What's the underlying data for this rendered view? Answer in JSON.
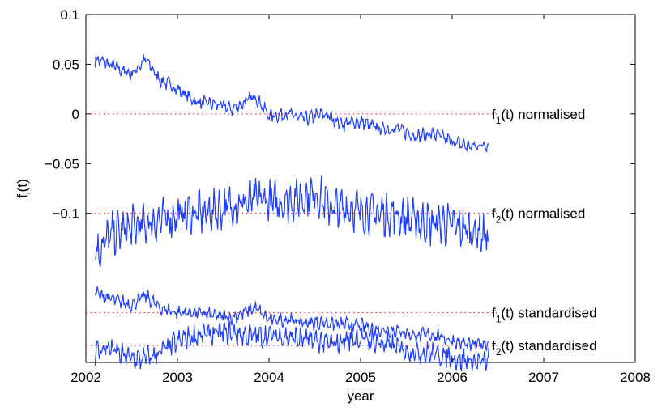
{
  "chart_data": {
    "type": "line",
    "xlabel": "year",
    "ylabel": "f",
    "ylabel_sub": "i",
    "ylabel_suffix": "(t)",
    "xlim": [
      2002,
      2008
    ],
    "ylim": [
      -0.25,
      0.1
    ],
    "xticks": [
      2002,
      2003,
      2004,
      2005,
      2006,
      2007,
      2008
    ],
    "yticks": [
      0.1,
      0.05,
      0,
      -0.05,
      -0.1
    ],
    "ytick_labels": [
      "0.1",
      "0.05",
      "0",
      "−0.05",
      "−0.1"
    ],
    "line_color": "#1f3fff",
    "baseline_color": "#ff2020",
    "series": [
      {
        "name": "f1(t) normalised",
        "label_main": "f",
        "label_sub": "1",
        "label_rest": "(t) normalised",
        "baseline": 0,
        "x": [
          2002.1,
          2002.3,
          2002.5,
          2002.65,
          2002.8,
          2003.0,
          2003.2,
          2003.4,
          2003.6,
          2003.85,
          2004.0,
          2004.2,
          2004.4,
          2004.6,
          2004.8,
          2005.0,
          2005.2,
          2005.4,
          2005.6,
          2005.8,
          2006.0,
          2006.2,
          2006.4
        ],
        "values": [
          0.055,
          0.048,
          0.04,
          0.055,
          0.035,
          0.025,
          0.012,
          0.01,
          0.005,
          0.018,
          -0.002,
          0.0,
          -0.005,
          0.0,
          -0.01,
          -0.008,
          -0.015,
          -0.015,
          -0.022,
          -0.02,
          -0.028,
          -0.033,
          -0.03
        ]
      },
      {
        "name": "f2(t) normalised",
        "label_main": "f",
        "label_sub": "2",
        "label_rest": "(t) normalised",
        "baseline": -0.1,
        "x": [
          2002.1,
          2002.3,
          2002.5,
          2002.7,
          2002.9,
          2003.1,
          2003.3,
          2003.5,
          2003.7,
          2003.9,
          2004.1,
          2004.3,
          2004.5,
          2004.7,
          2004.9,
          2005.1,
          2005.3,
          2005.5,
          2005.7,
          2005.9,
          2006.1,
          2006.3,
          2006.4
        ],
        "values": [
          -0.14,
          -0.12,
          -0.115,
          -0.11,
          -0.105,
          -0.1,
          -0.1,
          -0.095,
          -0.09,
          -0.085,
          -0.09,
          -0.085,
          -0.08,
          -0.095,
          -0.095,
          -0.1,
          -0.1,
          -0.105,
          -0.11,
          -0.11,
          -0.115,
          -0.12,
          -0.125
        ]
      },
      {
        "name": "f1(t) standardised",
        "label_main": "f",
        "label_sub": "1",
        "label_rest": "(t) standardised",
        "baseline": -0.2,
        "x": [
          2002.1,
          2002.3,
          2002.5,
          2002.65,
          2002.8,
          2003.0,
          2003.2,
          2003.4,
          2003.6,
          2003.85,
          2004.0,
          2004.2,
          2004.4,
          2004.6,
          2004.8,
          2005.0,
          2005.2,
          2005.4,
          2005.6,
          2005.8,
          2006.0,
          2006.2,
          2006.4
        ],
        "values": [
          -0.18,
          -0.187,
          -0.192,
          -0.183,
          -0.195,
          -0.2,
          -0.2,
          -0.203,
          -0.205,
          -0.195,
          -0.207,
          -0.207,
          -0.21,
          -0.21,
          -0.212,
          -0.213,
          -0.217,
          -0.218,
          -0.223,
          -0.222,
          -0.228,
          -0.233,
          -0.23
        ]
      },
      {
        "name": "f2(t) standardised",
        "label_main": "f",
        "label_sub": "2",
        "label_rest": "(t) standardised",
        "baseline": -0.2,
        "offset_baseline": -0.233,
        "x": [
          2002.1,
          2002.25,
          2002.4,
          2002.55,
          2002.7,
          2002.9,
          2003.1,
          2003.3,
          2003.5,
          2003.7,
          2003.9,
          2004.1,
          2004.3,
          2004.5,
          2004.7,
          2004.9,
          2005.1,
          2005.3,
          2005.5,
          2005.7,
          2005.9,
          2006.1,
          2006.3,
          2006.4
        ],
        "values": [
          -0.24,
          -0.235,
          -0.243,
          -0.247,
          -0.245,
          -0.235,
          -0.225,
          -0.222,
          -0.22,
          -0.222,
          -0.224,
          -0.223,
          -0.226,
          -0.228,
          -0.232,
          -0.225,
          -0.228,
          -0.232,
          -0.238,
          -0.24,
          -0.243,
          -0.247,
          -0.25,
          -0.248
        ]
      }
    ]
  }
}
